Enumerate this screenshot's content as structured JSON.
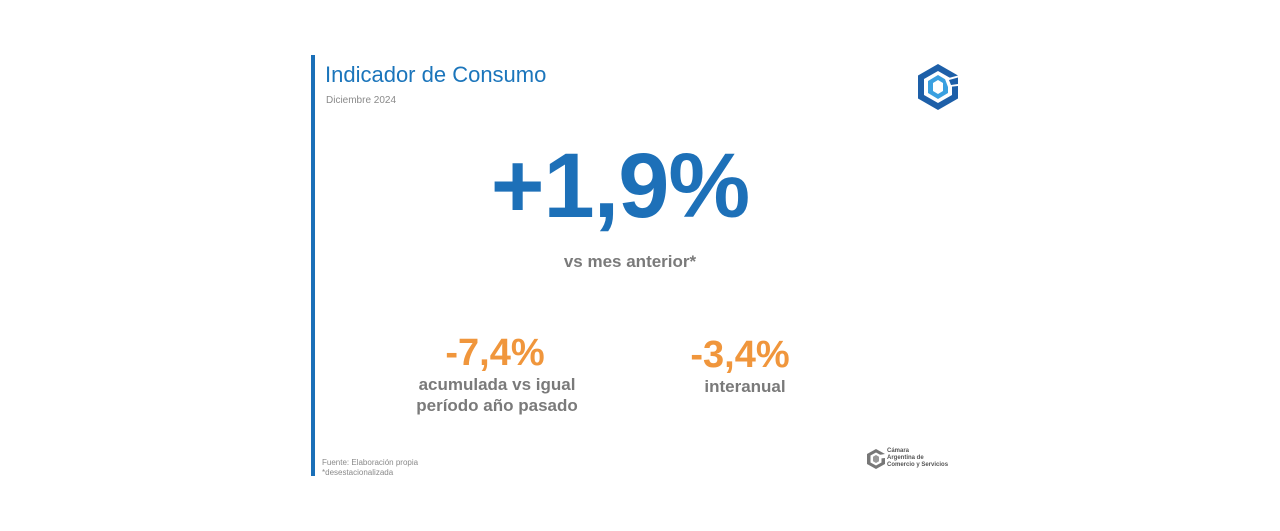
{
  "header": {
    "title": "Indicador de Consumo",
    "subtitle": "Diciembre 2024"
  },
  "main_indicator": {
    "value": "+1,9%",
    "label": "vs mes anterior*"
  },
  "secondary": [
    {
      "value": "-7,4%",
      "label_line1": "acumulada vs igual",
      "label_line2": "período año pasado"
    },
    {
      "value": "-3,4%",
      "label": "interanual"
    }
  ],
  "footer": {
    "source": "Fuente: Elaboración propia",
    "note": "*desestacionalizada"
  },
  "organization": {
    "name_line1": "Cámara",
    "name_line2": "Argentina de",
    "name_line3": "Comercio y Servicios"
  },
  "icons": [
    "cac-logo-icon",
    "cac-logo-small-icon"
  ],
  "colors": {
    "accent_blue": "#1b75bb",
    "orange": "#f0963c",
    "gray_text": "#7a7a7a"
  }
}
